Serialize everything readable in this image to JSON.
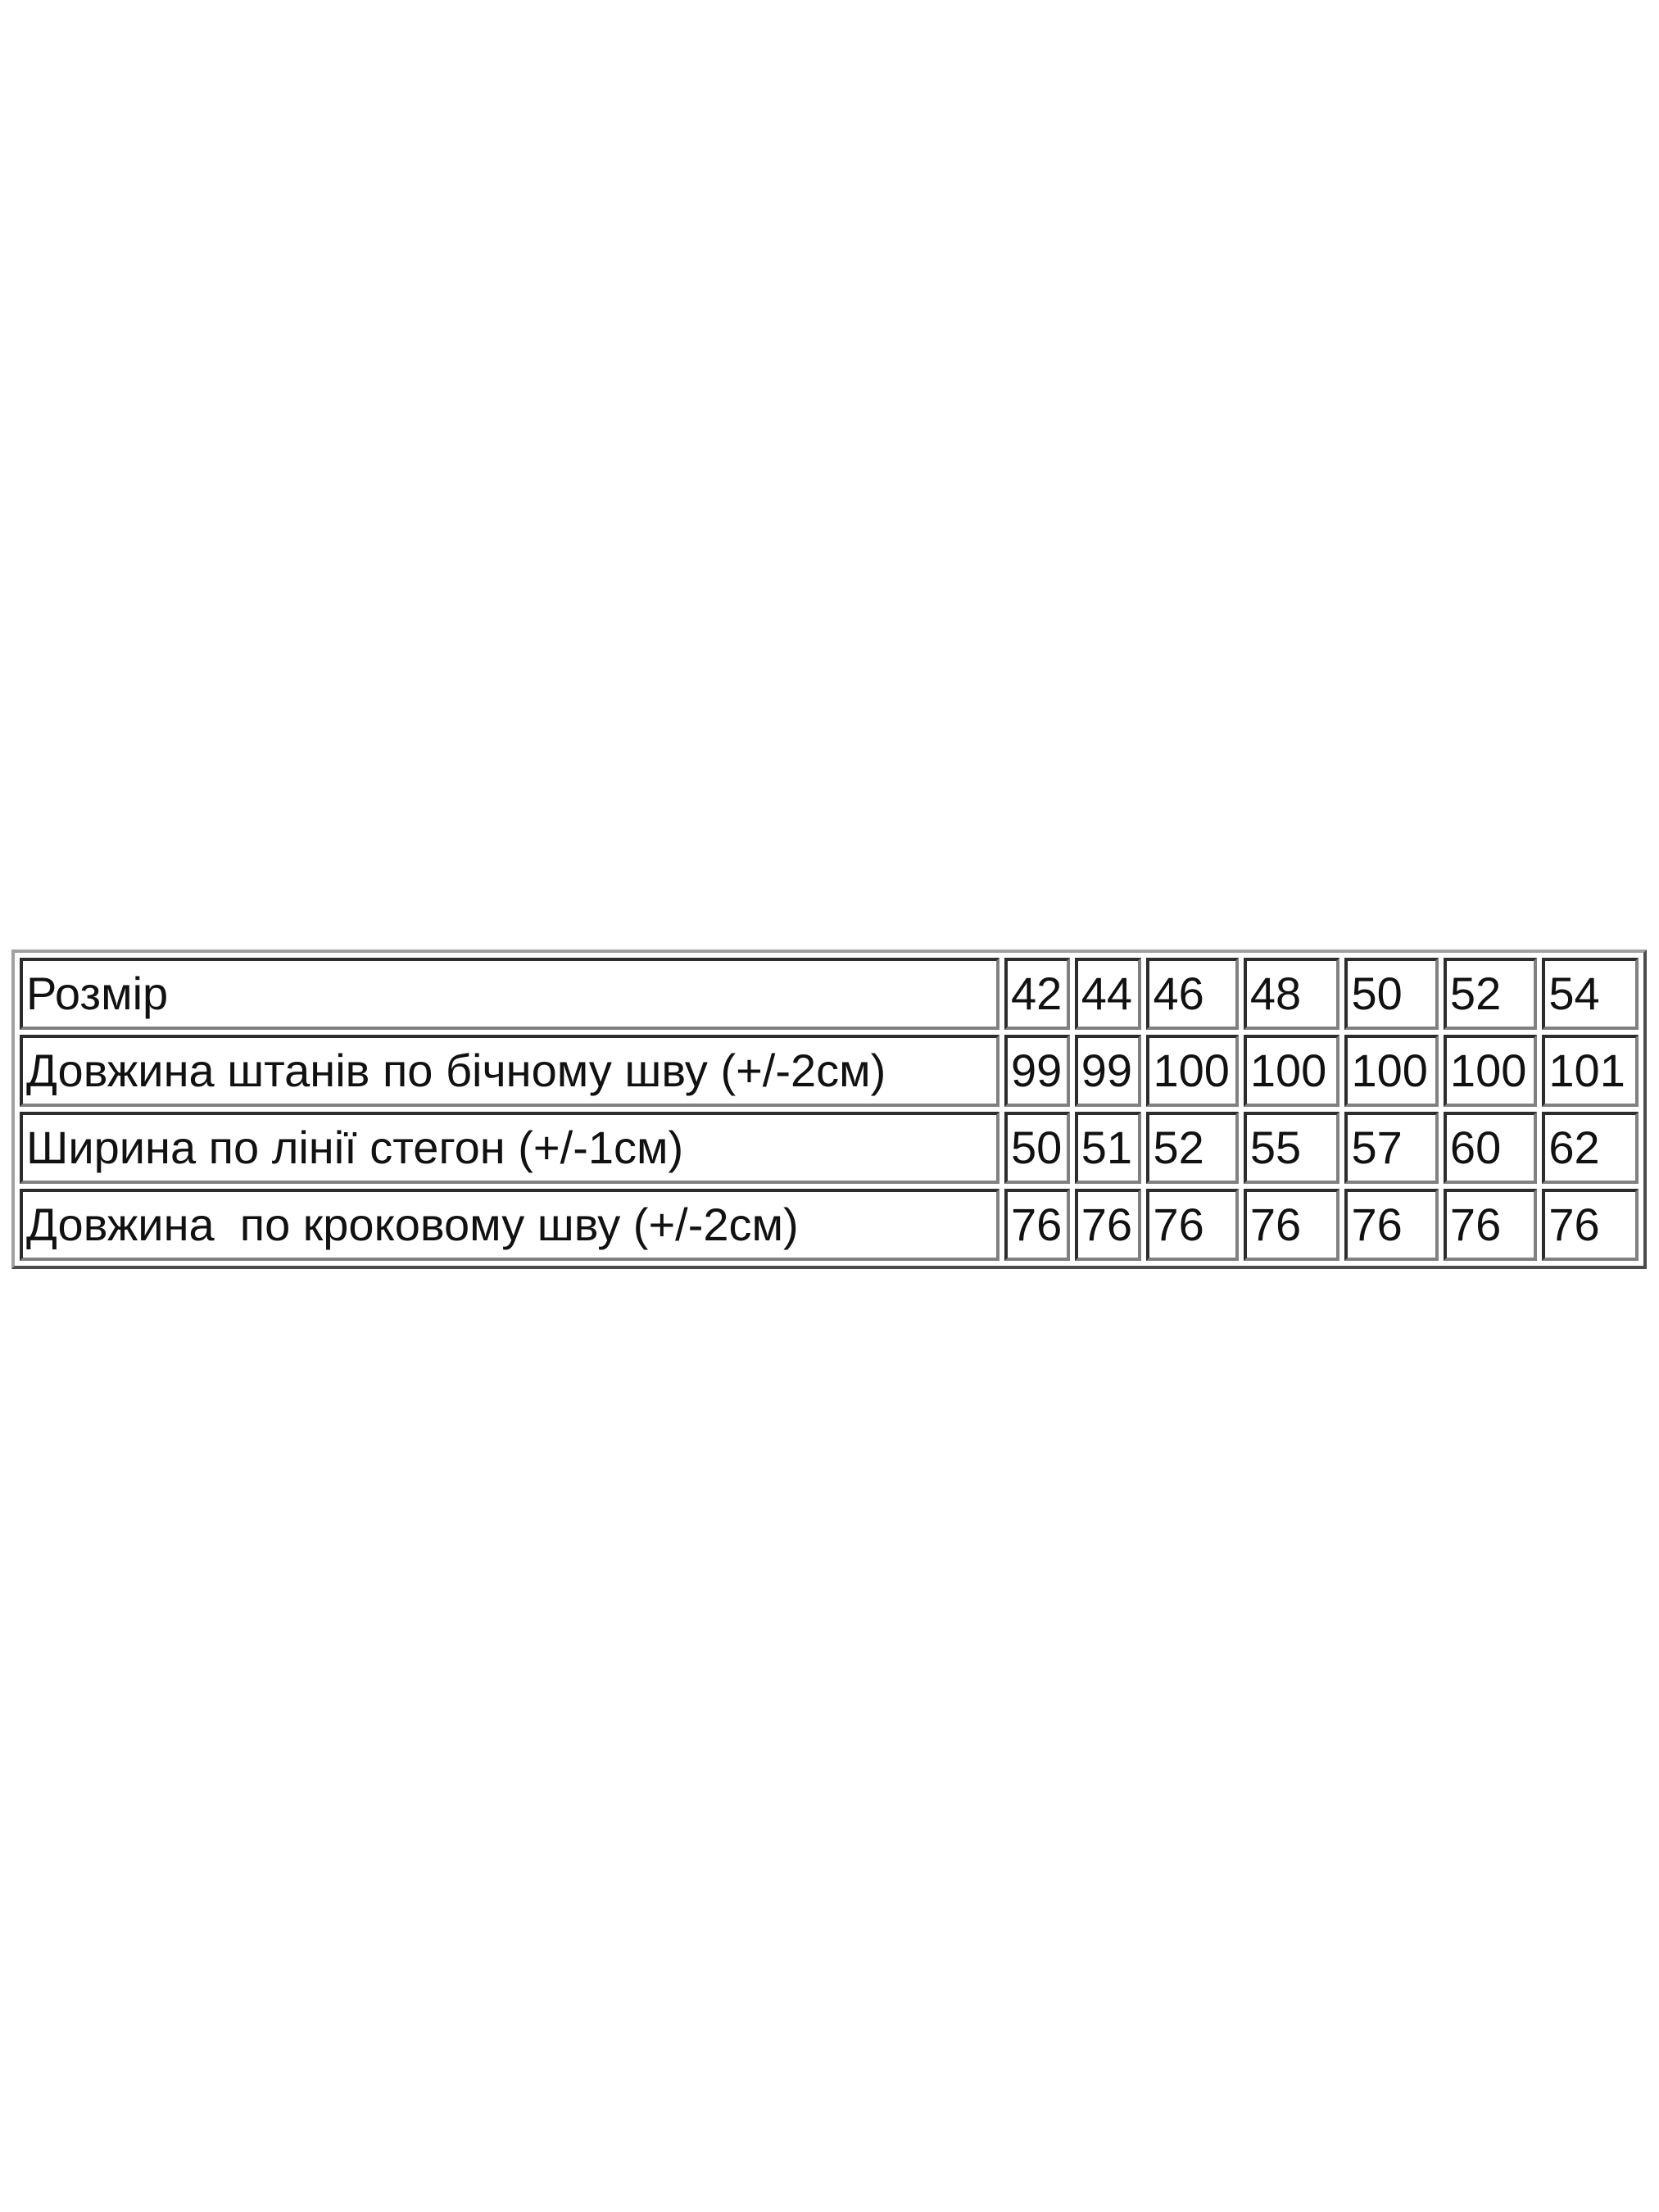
{
  "table": {
    "rows": [
      {
        "label": "Розмір",
        "values": [
          "42",
          "44",
          "46",
          "48",
          "50",
          "52",
          "54"
        ]
      },
      {
        "label": "Довжина штанів по бічному шву (+/-2см)",
        "values": [
          "99",
          "99",
          "100",
          "100",
          "100",
          "100",
          "101"
        ]
      },
      {
        "label": "Ширина по лінії стегон (+/-1см)",
        "values": [
          "50",
          "51",
          "52",
          "55",
          "57",
          "60",
          "62"
        ]
      },
      {
        "label": "Довжина  по кроковому шву (+/-2см)",
        "values": [
          "76",
          "76",
          "76",
          "76",
          "76",
          "76",
          "76"
        ]
      }
    ]
  }
}
